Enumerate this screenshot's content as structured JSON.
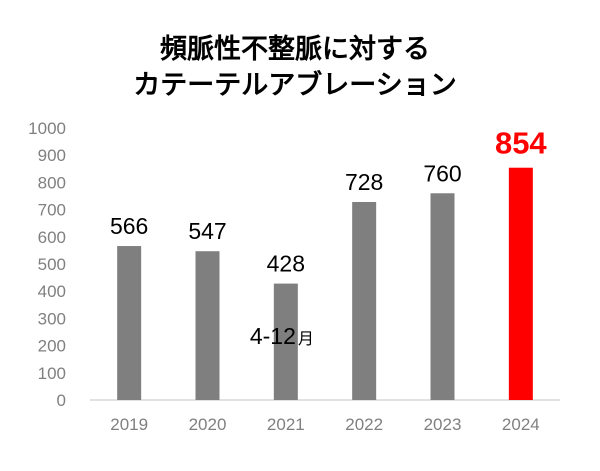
{
  "chart_data": {
    "type": "bar",
    "title_lines": [
      "頻脈性不整脈に対する",
      "カテーテルアブレーション"
    ],
    "categories": [
      "2019",
      "2020",
      "2021",
      "2022",
      "2023",
      "2024"
    ],
    "values": [
      566,
      547,
      428,
      728,
      760,
      854
    ],
    "data_labels": [
      "566",
      "547",
      "428",
      "728",
      "760",
      "854"
    ],
    "highlight_index": 5,
    "ylim": [
      0,
      1000
    ],
    "yticks": [
      0,
      100,
      200,
      300,
      400,
      500,
      600,
      700,
      800,
      900,
      1000
    ],
    "ytick_labels": [
      "0",
      "100",
      "200",
      "300",
      "400",
      "500",
      "600",
      "700",
      "800",
      "900",
      "1000"
    ],
    "grid": false,
    "legend": "none",
    "annotation": {
      "category": "2021",
      "main": "4-12",
      "unit": "月"
    },
    "colors": {
      "bar": "#7f7f7f",
      "highlight_bar": "#ff0000",
      "highlight_label": "#ff0000",
      "axis": "#d9d9d9",
      "tick_text": "#808080",
      "label_text": "#000000"
    }
  }
}
